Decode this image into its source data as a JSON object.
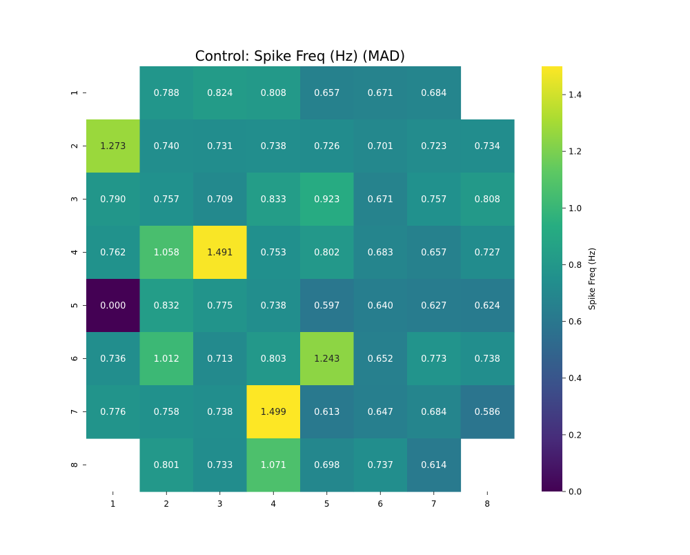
{
  "chart_data": {
    "type": "heatmap",
    "title": "Control: Spike Freq (Hz) (MAD)",
    "x_tick_labels": [
      "1",
      "2",
      "3",
      "4",
      "5",
      "6",
      "7",
      "8"
    ],
    "y_tick_labels": [
      "1",
      "2",
      "3",
      "4",
      "5",
      "6",
      "7",
      "8"
    ],
    "values": [
      [
        null,
        0.788,
        0.824,
        0.808,
        0.657,
        0.671,
        0.684,
        null
      ],
      [
        1.273,
        0.74,
        0.731,
        0.738,
        0.726,
        0.701,
        0.723,
        0.734
      ],
      [
        0.79,
        0.757,
        0.709,
        0.833,
        0.923,
        0.671,
        0.757,
        0.808
      ],
      [
        0.762,
        1.058,
        1.491,
        0.753,
        0.802,
        0.683,
        0.657,
        0.727
      ],
      [
        0.0,
        0.832,
        0.775,
        0.738,
        0.597,
        0.64,
        0.627,
        0.624
      ],
      [
        0.736,
        1.012,
        0.713,
        0.803,
        1.243,
        0.652,
        0.773,
        0.738
      ],
      [
        0.776,
        0.758,
        0.738,
        1.499,
        0.613,
        0.647,
        0.684,
        0.586
      ],
      [
        null,
        0.801,
        0.733,
        1.071,
        0.698,
        0.737,
        0.614,
        null
      ]
    ],
    "value_format_decimals": 3,
    "colormap": "viridis",
    "color_range": [
      0.0,
      1.5
    ],
    "colorbar": {
      "label": "Spike Freq (Hz)",
      "ticks": [
        0.0,
        0.2,
        0.4,
        0.6,
        0.8,
        1.0,
        1.2,
        1.4
      ],
      "tick_labels": [
        "0.0",
        "0.2",
        "0.4",
        "0.6",
        "0.8",
        "1.0",
        "1.2",
        "1.4"
      ],
      "placement": "right"
    },
    "grid": false,
    "legend": "none"
  }
}
